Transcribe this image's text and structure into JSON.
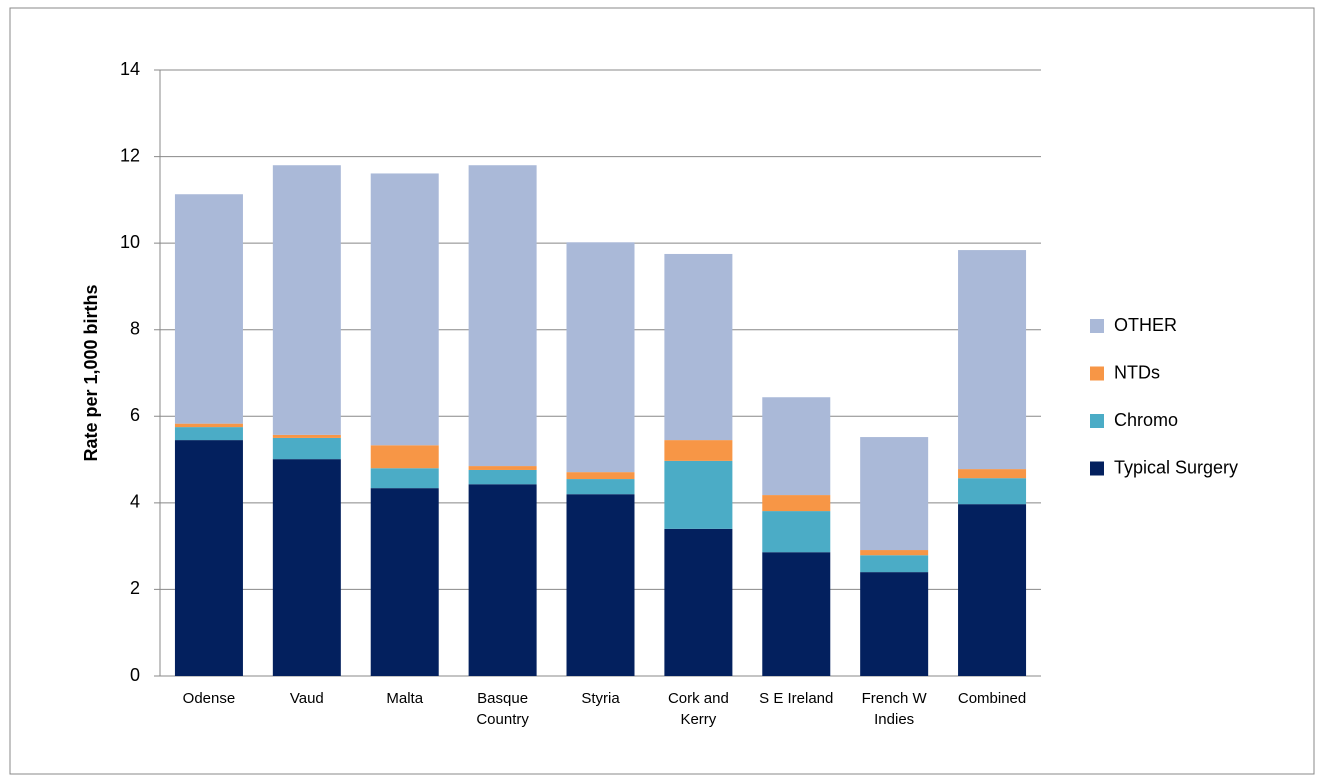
{
  "chart_data": {
    "type": "stacked_bar",
    "y_label": "Rate per 1,000 births",
    "categories": [
      "Odense",
      "Vaud",
      "Malta",
      "Basque Country",
      "Styria",
      "Cork and Kerry",
      "S E Ireland",
      "French W Indies",
      "Combined"
    ],
    "series": [
      {
        "name": "Typical Surgery",
        "color": "#03205e",
        "values": [
          5.45,
          5.01,
          4.34,
          4.43,
          4.2,
          3.4,
          2.86,
          2.4,
          3.97
        ]
      },
      {
        "name": "Chromo",
        "color": "#4bacc6",
        "values": [
          0.3,
          0.49,
          0.46,
          0.33,
          0.35,
          1.57,
          0.95,
          0.39,
          0.6
        ]
      },
      {
        "name": "NTDs",
        "color": "#f79646",
        "values": [
          0.08,
          0.07,
          0.53,
          0.09,
          0.16,
          0.48,
          0.37,
          0.12,
          0.21
        ]
      },
      {
        "name": "OTHER",
        "color": "#aab9d8",
        "values": [
          5.3,
          6.23,
          6.28,
          6.95,
          5.31,
          4.3,
          2.26,
          2.61,
          5.06
        ]
      }
    ],
    "ylim": [
      0,
      14
    ],
    "yticks": [
      0,
      2,
      4,
      6,
      8,
      10,
      12,
      14
    ],
    "grid": true,
    "legend": "right"
  }
}
